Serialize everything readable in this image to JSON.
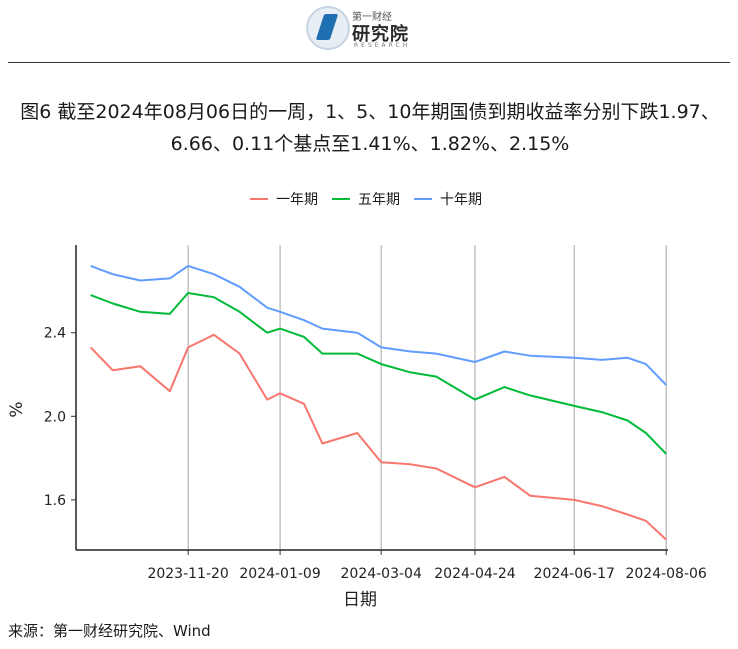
{
  "logo": {
    "small": "第一财经",
    "big": "研究院",
    "en": "RESEARCH"
  },
  "title": "图6  截至2024年08月06日的一周，1、5、10年期国债到期收益率分别下跌1.97、6.66、0.11个基点至1.41%、1.82%、2.15%",
  "source": "来源：第一财经研究院、Wind",
  "chart_data": {
    "type": "line",
    "xlabel": "日期",
    "ylabel": "%",
    "x_ticks": [
      "2023-11-20",
      "2024-01-09",
      "2024-03-04",
      "2024-04-24",
      "2024-06-17",
      "2024-08-06"
    ],
    "y_ticks": [
      "1.6",
      "2.0",
      "2.4"
    ],
    "ylim": [
      1.36,
      2.82
    ],
    "xlim": [
      "2023-09-20",
      "2024-08-07"
    ],
    "grid": "vertical lines at x ticks",
    "legend_position": "top",
    "x": [
      "2023-09-28",
      "2023-10-10",
      "2023-10-25",
      "2023-11-10",
      "2023-11-20",
      "2023-12-04",
      "2023-12-18",
      "2024-01-02",
      "2024-01-09",
      "2024-01-22",
      "2024-02-01",
      "2024-02-20",
      "2024-03-04",
      "2024-03-20",
      "2024-04-03",
      "2024-04-24",
      "2024-05-10",
      "2024-05-24",
      "2024-06-17",
      "2024-07-02",
      "2024-07-16",
      "2024-07-26",
      "2024-08-06"
    ],
    "series": [
      {
        "name": "一年期",
        "color": "#F8766D",
        "values": [
          2.33,
          2.22,
          2.24,
          2.12,
          2.33,
          2.39,
          2.3,
          2.08,
          2.11,
          2.06,
          1.87,
          1.92,
          1.78,
          1.77,
          1.75,
          1.66,
          1.71,
          1.62,
          1.6,
          1.57,
          1.53,
          1.5,
          1.41
        ]
      },
      {
        "name": "五年期",
        "color": "#00BA38",
        "values": [
          2.58,
          2.54,
          2.5,
          2.49,
          2.59,
          2.57,
          2.5,
          2.4,
          2.42,
          2.38,
          2.3,
          2.3,
          2.25,
          2.21,
          2.19,
          2.08,
          2.14,
          2.1,
          2.05,
          2.02,
          1.98,
          1.92,
          1.82
        ]
      },
      {
        "name": "十年期",
        "color": "#619CFF",
        "values": [
          2.72,
          2.68,
          2.65,
          2.66,
          2.72,
          2.68,
          2.62,
          2.52,
          2.5,
          2.46,
          2.42,
          2.4,
          2.33,
          2.31,
          2.3,
          2.26,
          2.31,
          2.29,
          2.28,
          2.27,
          2.28,
          2.25,
          2.15
        ]
      }
    ]
  }
}
